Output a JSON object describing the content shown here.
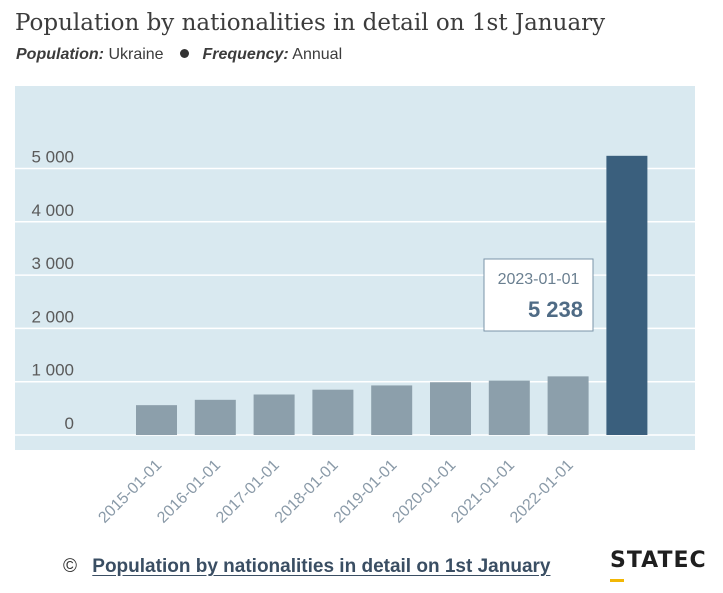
{
  "header": {
    "title": "Population by nationalities in detail on 1st January",
    "population_label": "Population:",
    "population_value": "Ukraine",
    "frequency_label": "Frequency:",
    "frequency_value": "Annual"
  },
  "colors": {
    "plot_bg": "#d9e9f0",
    "bar": "#8c9fab",
    "bar_highlight": "#3a5f7d",
    "grid": "#ffffff",
    "axis_text": "#5a5a5a",
    "tooltip_border": "#7a94a8",
    "tooltip_value": "#4f6b85"
  },
  "chart_data": {
    "type": "bar",
    "categories": [
      "2015-01-01",
      "2016-01-01",
      "2017-01-01",
      "2018-01-01",
      "2019-01-01",
      "2020-01-01",
      "2021-01-01",
      "2022-01-01",
      "2023-01-01"
    ],
    "values": [
      560,
      660,
      760,
      850,
      930,
      990,
      1020,
      1100,
      5238
    ],
    "y_tick_labels": [
      "0",
      "1 000",
      "2 000",
      "3 000",
      "4 000",
      "5 000"
    ],
    "y_ticks": [
      0,
      1000,
      2000,
      3000,
      4000,
      5000
    ],
    "ylim": [
      -200,
      6400
    ],
    "x_tick_labels_shown": [
      "2015-01-01",
      "2016-01-01",
      "2017-01-01",
      "2018-01-01",
      "2019-01-01",
      "2020-01-01",
      "2021-01-01",
      "2022-01-01"
    ],
    "highlighted_index": 8,
    "grid": true,
    "tooltip": {
      "date": "2023-01-01",
      "value": "5 238"
    }
  },
  "footer": {
    "copyright": "©",
    "link_text": "Population by nationalities in detail on 1st January",
    "logo": "STATEC"
  }
}
